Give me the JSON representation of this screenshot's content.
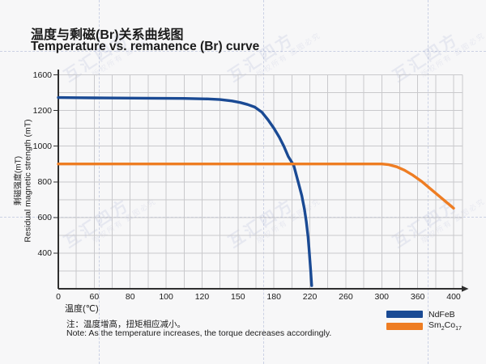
{
  "page": {
    "background": "#f7f7f8"
  },
  "watermark": {
    "brand": "互汇四方",
    "notice": "版权所有 盗图必究"
  },
  "header": {
    "title_zh": "温度与剩磁(Br)关系曲线图",
    "title_en": "Temperature vs. remanence (Br) curve"
  },
  "note": {
    "zh": "注：温度增高，扭矩相应减小。",
    "en": "Note: As the temperature increases, the torque decreases accordingly."
  },
  "colors": {
    "ndfeb": "#1a4a94",
    "smco": "#ee7d23",
    "axis": "#2f2f2f",
    "grid": "#c9c9cc",
    "text": "#1b1b1b"
  },
  "chart_data": {
    "type": "line",
    "title": "温度与剩磁(Br)关系曲线图 / Temperature vs. remanence (Br) curve",
    "xlabel": "温度(℃)",
    "ylabel_zh": "剩磁强度(mT)",
    "ylabel_en": "Residual magnetic strength (mT)",
    "x_ticks": [
      0,
      60,
      80,
      100,
      120,
      150,
      180,
      220,
      260,
      300,
      360,
      400
    ],
    "y_ticks": [
      0,
      400,
      600,
      800,
      1000,
      1200,
      1600
    ],
    "axis_note": "tick marks are evenly spaced on canvas although tick values are non-uniform; values interpolate piecewise between ticks",
    "grid": true,
    "legend_position": "bottom-right",
    "series": [
      {
        "name": "NdFeB",
        "color": "#1a4a94",
        "points": [
          [
            0,
            1345
          ],
          [
            30,
            1343
          ],
          [
            60,
            1341
          ],
          [
            90,
            1338
          ],
          [
            110,
            1335
          ],
          [
            125,
            1330
          ],
          [
            135,
            1322
          ],
          [
            145,
            1307
          ],
          [
            152,
            1289
          ],
          [
            158,
            1267
          ],
          [
            164,
            1238
          ],
          [
            170,
            1190
          ],
          [
            175,
            1148
          ],
          [
            180,
            1100
          ],
          [
            186,
            1050
          ],
          [
            191,
            1000
          ],
          [
            196,
            942
          ],
          [
            202,
            893
          ],
          [
            207,
            800
          ],
          [
            211,
            722
          ],
          [
            214,
            645
          ],
          [
            216,
            578
          ],
          [
            218,
            492
          ],
          [
            219,
            432
          ],
          [
            220,
            330
          ],
          [
            221,
            185
          ],
          [
            222,
            35
          ]
        ]
      },
      {
        "name": "Sm2Co17",
        "display": {
          "base1": "Sm",
          "sub1": "2",
          "base2": "Co",
          "sub2": "17"
        },
        "color": "#ee7d23",
        "points": [
          [
            0,
            900
          ],
          [
            80,
            900
          ],
          [
            160,
            900
          ],
          [
            240,
            900
          ],
          [
            300,
            900
          ],
          [
            312,
            896
          ],
          [
            325,
            884
          ],
          [
            338,
            865
          ],
          [
            352,
            837
          ],
          [
            365,
            800
          ],
          [
            378,
            745
          ],
          [
            390,
            694
          ],
          [
            400,
            652
          ]
        ]
      }
    ]
  }
}
